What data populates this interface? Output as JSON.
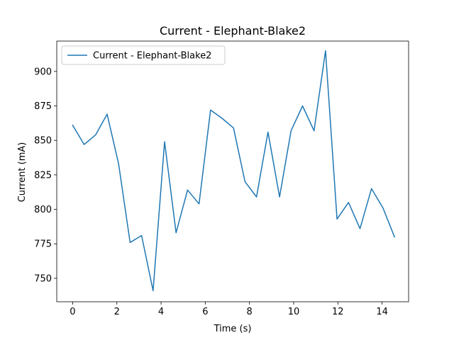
{
  "chart_data": {
    "type": "line",
    "title": "Current - Elephant-Blake2",
    "xlabel": "Time (s)",
    "ylabel": "Current (mA)",
    "xlim": [
      -0.72,
      15.2
    ],
    "ylim": [
      733,
      922
    ],
    "xticks": [
      0,
      2,
      4,
      6,
      8,
      10,
      12,
      14
    ],
    "yticks": [
      750,
      775,
      800,
      825,
      850,
      875,
      900
    ],
    "grid": false,
    "legend_position": "top-left",
    "series": [
      {
        "name": "Current - Elephant-Blake2",
        "color": "#1f77b4",
        "x": [
          0.0,
          0.52,
          1.04,
          1.56,
          2.08,
          2.6,
          3.12,
          3.64,
          4.16,
          4.68,
          5.2,
          5.72,
          6.24,
          6.76,
          7.28,
          7.8,
          8.32,
          8.84,
          9.36,
          9.88,
          10.4,
          10.92,
          11.44,
          11.96,
          12.48,
          13.0,
          13.52,
          14.04,
          14.56
        ],
        "values": [
          861,
          847,
          854,
          869,
          833,
          776,
          781,
          741,
          849,
          783,
          814,
          804,
          872,
          866,
          859,
          820,
          809,
          856,
          809,
          857,
          875,
          857,
          915,
          793,
          805,
          786,
          815,
          801,
          780
        ]
      }
    ]
  }
}
